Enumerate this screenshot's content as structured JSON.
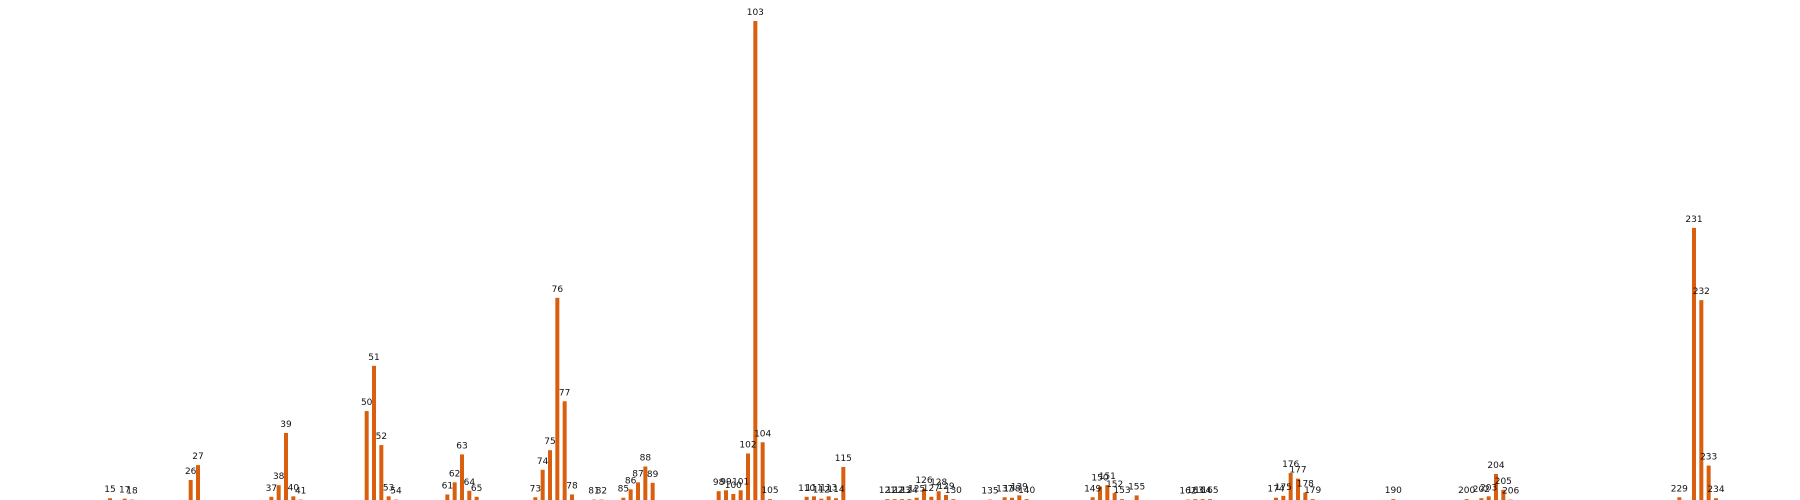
{
  "chart_data": {
    "type": "bar",
    "title": "",
    "xlabel": "",
    "ylabel": "",
    "bar_color": "#d95f0e",
    "x_range": [
      0,
      270
    ],
    "ylim": [
      0,
      103
    ],
    "grid": false,
    "axes_visible": false,
    "points": [
      {
        "label": "15",
        "x": 15,
        "value": 0.6
      },
      {
        "label": "17",
        "x": 17,
        "value": 0.5
      },
      {
        "label": "18",
        "x": 18,
        "value": 0.3
      },
      {
        "label": "26",
        "x": 26,
        "value": 4.5
      },
      {
        "label": "27",
        "x": 27,
        "value": 7.7
      },
      {
        "label": "37",
        "x": 37,
        "value": 0.9
      },
      {
        "label": "38",
        "x": 38,
        "value": 3.4
      },
      {
        "label": "39",
        "x": 39,
        "value": 14.6
      },
      {
        "label": "40",
        "x": 40,
        "value": 1.0
      },
      {
        "label": "41",
        "x": 41,
        "value": 0.3
      },
      {
        "label": "50",
        "x": 50,
        "value": 19.3
      },
      {
        "label": "51",
        "x": 51,
        "value": 29.0
      },
      {
        "label": "52",
        "x": 52,
        "value": 12.0
      },
      {
        "label": "53",
        "x": 53,
        "value": 1.0
      },
      {
        "label": "54",
        "x": 54,
        "value": 0.3
      },
      {
        "label": "61",
        "x": 61,
        "value": 1.4
      },
      {
        "label": "62",
        "x": 62,
        "value": 4.0
      },
      {
        "label": "63",
        "x": 63,
        "value": 10.0
      },
      {
        "label": "64",
        "x": 64,
        "value": 2.2
      },
      {
        "label": "65",
        "x": 65,
        "value": 0.9
      },
      {
        "label": "73",
        "x": 73,
        "value": 0.8
      },
      {
        "label": "74",
        "x": 74,
        "value": 6.7
      },
      {
        "label": "75",
        "x": 75,
        "value": 10.9
      },
      {
        "label": "76",
        "x": 76,
        "value": 43.6
      },
      {
        "label": "77",
        "x": 77,
        "value": 21.4
      },
      {
        "label": "78",
        "x": 78,
        "value": 1.4
      },
      {
        "label": "81",
        "x": 81,
        "value": 0.3
      },
      {
        "label": "82",
        "x": 82,
        "value": 0.3
      },
      {
        "label": "85",
        "x": 85,
        "value": 0.7
      },
      {
        "label": "86",
        "x": 86,
        "value": 2.5
      },
      {
        "label": "87",
        "x": 87,
        "value": 4.0
      },
      {
        "label": "88",
        "x": 88,
        "value": 7.4
      },
      {
        "label": "89",
        "x": 89,
        "value": 3.9
      },
      {
        "label": "98",
        "x": 98,
        "value": 2.1
      },
      {
        "label": "99",
        "x": 99,
        "value": 2.3
      },
      {
        "label": "100",
        "x": 100,
        "value": 1.5
      },
      {
        "label": "101",
        "x": 101,
        "value": 2.3
      },
      {
        "label": "102",
        "x": 102,
        "value": 10.2
      },
      {
        "label": "103",
        "x": 103,
        "value": 103.0
      },
      {
        "label": "104",
        "x": 104,
        "value": 12.6
      },
      {
        "label": "105",
        "x": 105,
        "value": 0.4
      },
      {
        "label": "110",
        "x": 110,
        "value": 0.9
      },
      {
        "label": "111",
        "x": 111,
        "value": 1.0
      },
      {
        "label": "112",
        "x": 112,
        "value": 0.5
      },
      {
        "label": "113",
        "x": 113,
        "value": 1.0
      },
      {
        "label": "114",
        "x": 114,
        "value": 0.6
      },
      {
        "label": "115",
        "x": 115,
        "value": 7.3
      },
      {
        "label": "121",
        "x": 121,
        "value": 0.4
      },
      {
        "label": "122",
        "x": 122,
        "value": 0.4
      },
      {
        "label": "123",
        "x": 123,
        "value": 0.4
      },
      {
        "label": "124",
        "x": 124,
        "value": 0.4
      },
      {
        "label": "125",
        "x": 125,
        "value": 0.7
      },
      {
        "label": "126",
        "x": 126,
        "value": 2.6
      },
      {
        "label": "127",
        "x": 127,
        "value": 0.9
      },
      {
        "label": "128",
        "x": 128,
        "value": 2.1
      },
      {
        "label": "129",
        "x": 129,
        "value": 1.3
      },
      {
        "label": "130",
        "x": 130,
        "value": 0.4
      },
      {
        "label": "135",
        "x": 135,
        "value": 0.3
      },
      {
        "label": "137",
        "x": 137,
        "value": 0.8
      },
      {
        "label": "138",
        "x": 138,
        "value": 0.7
      },
      {
        "label": "139",
        "x": 139,
        "value": 1.2
      },
      {
        "label": "140",
        "x": 140,
        "value": 0.4
      },
      {
        "label": "149",
        "x": 149,
        "value": 0.8
      },
      {
        "label": "150",
        "x": 150,
        "value": 3.1
      },
      {
        "label": "151",
        "x": 151,
        "value": 3.4
      },
      {
        "label": "152",
        "x": 152,
        "value": 1.7
      },
      {
        "label": "153",
        "x": 153,
        "value": 0.4
      },
      {
        "label": "155",
        "x": 155,
        "value": 1.2
      },
      {
        "label": "162",
        "x": 162,
        "value": 0.3
      },
      {
        "label": "163",
        "x": 163,
        "value": 0.4
      },
      {
        "label": "164",
        "x": 164,
        "value": 0.4
      },
      {
        "label": "165",
        "x": 165,
        "value": 0.4
      },
      {
        "label": "174",
        "x": 174,
        "value": 0.7
      },
      {
        "label": "175",
        "x": 175,
        "value": 1.1
      },
      {
        "label": "176",
        "x": 176,
        "value": 6.0
      },
      {
        "label": "177",
        "x": 177,
        "value": 4.8
      },
      {
        "label": "178",
        "x": 178,
        "value": 1.8
      },
      {
        "label": "179",
        "x": 179,
        "value": 0.4
      },
      {
        "label": "190",
        "x": 190,
        "value": 0.4
      },
      {
        "label": "200",
        "x": 200,
        "value": 0.4
      },
      {
        "label": "202",
        "x": 202,
        "value": 0.6
      },
      {
        "label": "203",
        "x": 203,
        "value": 1.0
      },
      {
        "label": "204",
        "x": 204,
        "value": 5.8
      },
      {
        "label": "205",
        "x": 205,
        "value": 2.4
      },
      {
        "label": "206",
        "x": 206,
        "value": 0.3
      },
      {
        "label": "229",
        "x": 229,
        "value": 0.8
      },
      {
        "label": "231",
        "x": 231,
        "value": 58.6
      },
      {
        "label": "232",
        "x": 232,
        "value": 43.1
      },
      {
        "label": "233",
        "x": 233,
        "value": 7.6
      },
      {
        "label": "234",
        "x": 234,
        "value": 0.6
      }
    ]
  }
}
